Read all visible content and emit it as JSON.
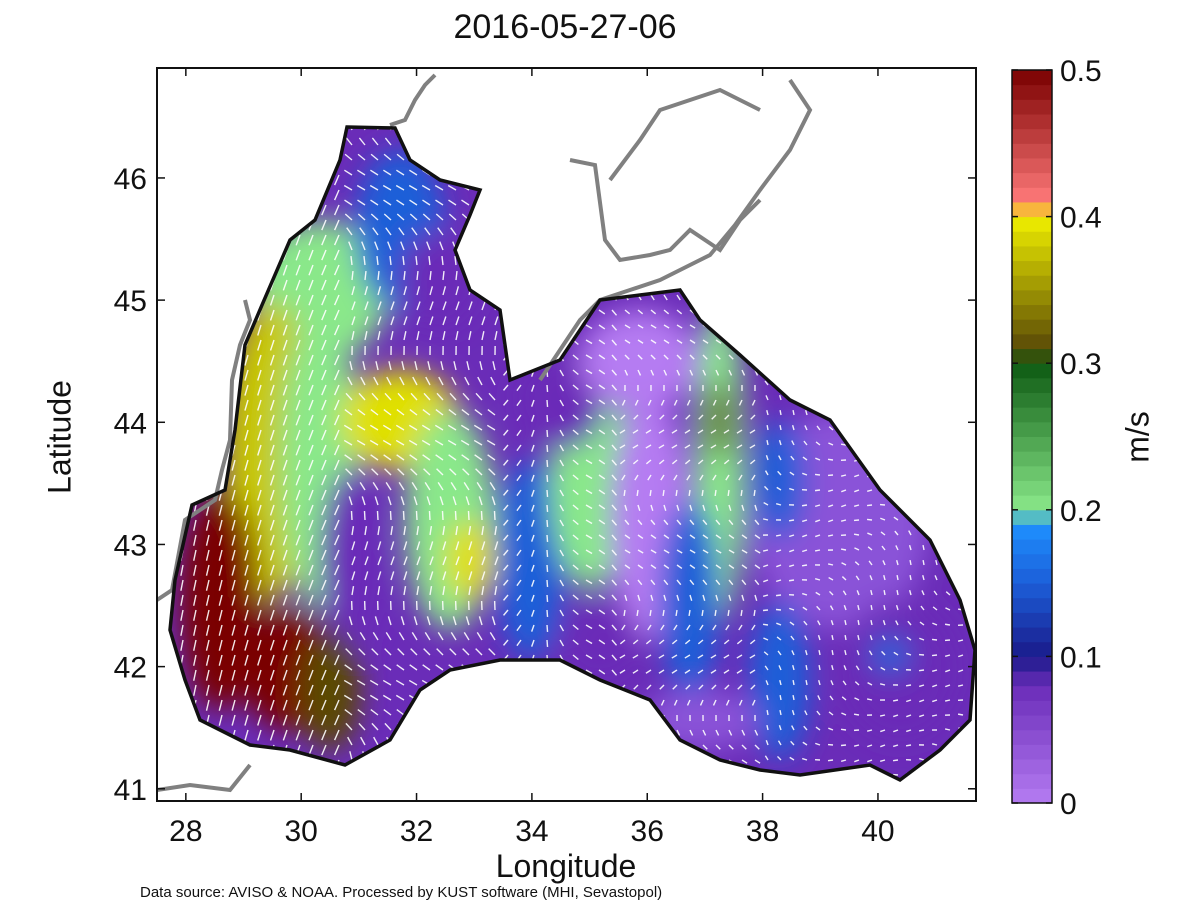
{
  "title": "2016-05-27-06",
  "xaxis": {
    "label": "Longitude",
    "range": [
      27.5,
      41.7
    ],
    "ticks": [
      "28",
      "30",
      "32",
      "34",
      "36",
      "38",
      "40"
    ],
    "values": [
      28,
      30,
      32,
      34,
      36,
      38,
      40
    ]
  },
  "yaxis": {
    "label": "Latitude",
    "range": [
      40.9,
      46.9
    ],
    "ticks": [
      "41",
      "42",
      "43",
      "44",
      "45",
      "46"
    ],
    "values": [
      41,
      42,
      43,
      44,
      45,
      46
    ]
  },
  "colorbar": {
    "label": "m/s",
    "range": [
      0,
      0.5
    ],
    "ticks": [
      "0",
      "0.1",
      "0.2",
      "0.3",
      "0.4",
      "0.5"
    ],
    "values": [
      0,
      0.1,
      0.2,
      0.3,
      0.4,
      0.5
    ],
    "stops": [
      {
        "v": 0.0,
        "color": "#b57cf2"
      },
      {
        "v": 0.08,
        "color": "#6a2cb8"
      },
      {
        "v": 0.1,
        "color": "#1a1a8a"
      },
      {
        "v": 0.15,
        "color": "#1c5ed8"
      },
      {
        "v": 0.19,
        "color": "#1e90ff"
      },
      {
        "v": 0.2,
        "color": "#8ae88a"
      },
      {
        "v": 0.3,
        "color": "#0d5a12"
      },
      {
        "v": 0.31,
        "color": "#5a4a06"
      },
      {
        "v": 0.4,
        "color": "#f0f000"
      },
      {
        "v": 0.41,
        "color": "#ff7a7a"
      },
      {
        "v": 0.5,
        "color": "#7a0000"
      }
    ]
  },
  "chart_data": {
    "type": "heatmap",
    "title": "2016-05-27-06",
    "xlabel": "Longitude",
    "ylabel": "Latitude",
    "xlim": [
      27.5,
      41.7
    ],
    "ylim": [
      40.9,
      46.9
    ],
    "colorbar_label": "m/s",
    "colorbar_range": [
      0,
      0.5
    ],
    "grid": false,
    "notes_visible": "Black Sea surface current speed field with white velocity vectors",
    "high_speed_regions": [
      {
        "lon": 28.4,
        "lat": 42.7,
        "speed": 0.5
      },
      {
        "lon": 29.5,
        "lat": 42.0,
        "speed": 0.5
      },
      {
        "lon": 31.8,
        "lat": 44.1,
        "speed": 0.45
      },
      {
        "lon": 32.9,
        "lat": 43.0,
        "speed": 0.4
      },
      {
        "lon": 37.1,
        "lat": 44.0,
        "speed": 0.33
      }
    ],
    "low_speed_regions": [
      {
        "lon": 33.0,
        "lat": 45.2,
        "speed": 0.05
      },
      {
        "lon": 36.5,
        "lat": 43.3,
        "speed": 0.03
      },
      {
        "lon": 39.5,
        "lat": 42.8,
        "speed": 0.04
      },
      {
        "lon": 31.0,
        "lat": 42.9,
        "speed": 0.05
      }
    ]
  },
  "source_text": "Data source: AVISO & NOAA. Processed by KUST software (MHI, Sevastopol)"
}
